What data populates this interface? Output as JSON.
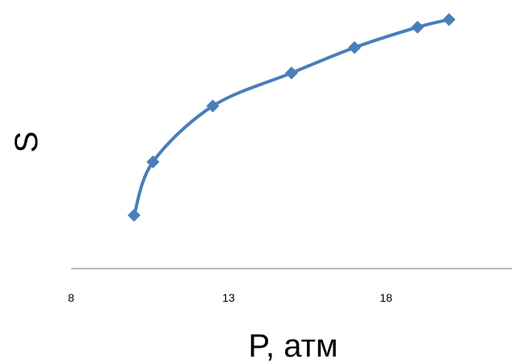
{
  "chart_data": {
    "type": "line",
    "title": "",
    "xlabel": "P, атм",
    "ylabel": "S",
    "xlim": [
      8,
      22
    ],
    "ylim": [
      0,
      1
    ],
    "x_ticks": [
      8,
      13,
      18
    ],
    "y_ticks_shown": false,
    "grid": false,
    "legend": "none",
    "smooth": true,
    "marker": "diamond",
    "color": "#4a7ebb",
    "axis_color": "#a6a6a6",
    "series": [
      {
        "x": [
          10,
          10.6,
          12.5,
          15,
          17,
          19,
          20
        ],
        "y": [
          0.21,
          0.42,
          0.64,
          0.77,
          0.87,
          0.95,
          0.98
        ]
      }
    ]
  }
}
